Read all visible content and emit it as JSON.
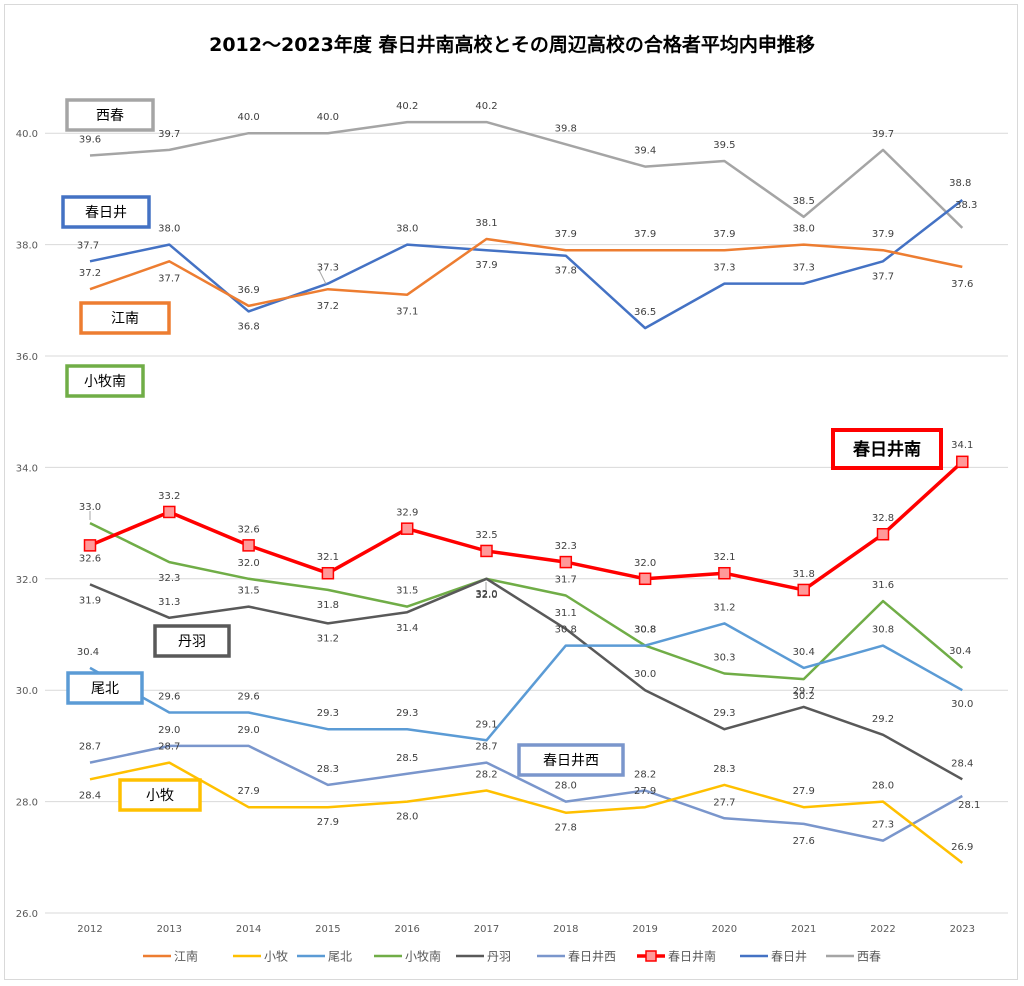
{
  "chart_data": {
    "type": "line",
    "title": "2012～2023年度 春日井南高校とその周辺高校の合格者平均内申推移",
    "xlabel": "",
    "ylabel": "",
    "x": [
      "2012",
      "2013",
      "2014",
      "2015",
      "2016",
      "2017",
      "2018",
      "2019",
      "2020",
      "2021",
      "2022",
      "2023"
    ],
    "ylim": [
      26,
      41
    ],
    "yticks": [
      "26.0",
      "28.0",
      "30.0",
      "32.0",
      "34.0",
      "36.0",
      "38.0",
      "40.0"
    ],
    "grid": true,
    "legend_position": "bottom",
    "series": [
      {
        "name": "江南",
        "color": "#ED7D31",
        "values": [
          37.2,
          37.7,
          36.9,
          37.2,
          37.1,
          38.1,
          37.9,
          37.9,
          37.9,
          38.0,
          37.9,
          37.6
        ],
        "labels": [
          "37.2",
          "37.7",
          "36.9",
          "37.2",
          "37.1",
          "38.1",
          "37.9",
          "37.9",
          "37.9",
          "38.0",
          "37.9",
          "37.6"
        ]
      },
      {
        "name": "小牧",
        "color": "#FFC000",
        "values": [
          28.4,
          28.7,
          27.9,
          27.9,
          28.0,
          28.2,
          27.8,
          27.9,
          28.3,
          27.9,
          28.0,
          26.9
        ],
        "labels": [
          "28.4",
          "28.7",
          "27.9",
          "27.9",
          "28.0",
          "28.2",
          "27.8",
          "27.9",
          "28.3",
          "27.9",
          "28.0",
          "26.9"
        ]
      },
      {
        "name": "尾北",
        "color": "#5B9BD5",
        "values": [
          30.4,
          29.6,
          29.6,
          29.3,
          29.3,
          29.1,
          30.8,
          30.8,
          31.2,
          30.4,
          30.8,
          30.0
        ],
        "labels": [
          "30.4",
          "29.6",
          "29.6",
          "29.3",
          "29.3",
          "29.1",
          "30.8",
          "30.8",
          "31.2",
          "30.4",
          "30.8",
          "30.0"
        ]
      },
      {
        "name": "小牧南",
        "color": "#70AD47",
        "values": [
          33.0,
          32.3,
          32.0,
          31.8,
          31.5,
          32.0,
          31.7,
          30.8,
          30.3,
          30.2,
          31.6,
          30.4
        ],
        "labels": [
          "33.0",
          "32.3",
          "32.0",
          "31.8",
          "31.5",
          "32.0",
          "31.7",
          "30.8",
          "30.3",
          "30.2",
          "31.6",
          "30.4"
        ]
      },
      {
        "name": "丹羽",
        "color": "#595959",
        "values": [
          31.9,
          31.3,
          31.5,
          31.2,
          31.4,
          32.0,
          31.1,
          30.0,
          29.3,
          29.7,
          29.2,
          28.4
        ],
        "labels": [
          "31.9",
          "31.3",
          "31.5",
          "31.2",
          "31.4",
          "32.0",
          "31.1",
          "30.0",
          "29.3",
          "29.7",
          "29.2",
          "28.4"
        ]
      },
      {
        "name": "春日井西",
        "color": "#7A96CC",
        "values": [
          28.7,
          29.0,
          29.0,
          28.3,
          28.5,
          28.7,
          28.0,
          28.2,
          27.7,
          27.6,
          27.3,
          28.1
        ],
        "labels": [
          "28.7",
          "29.0",
          "29.0",
          "28.3",
          "28.5",
          "28.7",
          "28.0",
          "28.2",
          "27.7",
          "27.6",
          "27.3",
          "28.1"
        ]
      },
      {
        "name": "春日井南",
        "color": "#FF0000",
        "marker": "square",
        "values": [
          32.6,
          33.2,
          32.6,
          32.1,
          32.9,
          32.5,
          32.3,
          32.0,
          32.1,
          31.8,
          32.8,
          34.1
        ],
        "labels": [
          "32.6",
          "33.2",
          "32.6",
          "32.1",
          "32.9",
          "32.5",
          "32.3",
          "32.0",
          "32.1",
          "31.8",
          "32.8",
          "34.1"
        ]
      },
      {
        "name": "春日井",
        "color": "#4472C4",
        "values": [
          37.7,
          38.0,
          36.8,
          37.3,
          38.0,
          37.9,
          37.8,
          36.5,
          37.3,
          37.3,
          37.7,
          38.8
        ],
        "labels": [
          "37.7",
          "38.0",
          "36.8",
          "37.3",
          "38.0",
          "37.9",
          "37.8",
          "36.5",
          "37.3",
          "37.3",
          "37.7",
          "38.8"
        ]
      },
      {
        "name": "西春",
        "color": "#A5A5A5",
        "values": [
          39.6,
          39.7,
          40.0,
          40.0,
          40.2,
          40.2,
          39.8,
          39.4,
          39.5,
          38.5,
          39.7,
          38.3
        ],
        "labels": [
          "39.6",
          "39.7",
          "40.0",
          "40.0",
          "40.2",
          "40.2",
          "39.8",
          "39.4",
          "39.5",
          "38.5",
          "39.7",
          "38.3"
        ]
      }
    ],
    "annotations": [
      {
        "text": "西春",
        "color": "#A5A5A5",
        "style": "normal"
      },
      {
        "text": "春日井",
        "color": "#4472C4",
        "style": "normal"
      },
      {
        "text": "江南",
        "color": "#ED7D31",
        "style": "normal"
      },
      {
        "text": "小牧南",
        "color": "#70AD47",
        "style": "normal"
      },
      {
        "text": "春日井南",
        "color": "#FF0000",
        "style": "bold"
      },
      {
        "text": "丹羽",
        "color": "#595959",
        "style": "normal"
      },
      {
        "text": "尾北",
        "color": "#5B9BD5",
        "style": "normal"
      },
      {
        "text": "春日井西",
        "color": "#7A96CC",
        "style": "normal"
      },
      {
        "text": "小牧",
        "color": "#FFC000",
        "style": "normal"
      }
    ]
  }
}
